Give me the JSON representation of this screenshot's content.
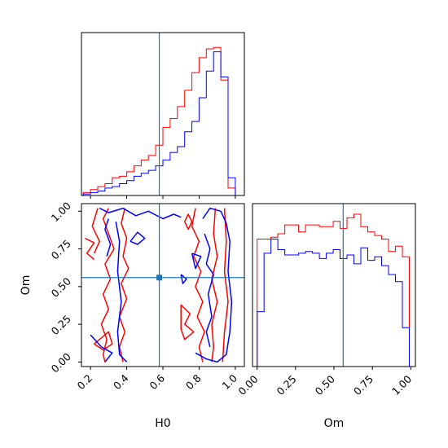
{
  "colors": {
    "series_a": "#ff0000",
    "series_b": "#0000ff",
    "truth": "#1f77b4",
    "axes": "#000000"
  },
  "chart_data": [
    {
      "type": "histogram",
      "panel": "H0 marginal",
      "x": [
        0.16,
        0.2,
        0.24,
        0.28,
        0.32,
        0.36,
        0.4,
        0.44,
        0.48,
        0.52,
        0.56,
        0.6,
        0.64,
        0.68,
        0.72,
        0.76,
        0.8,
        0.84,
        0.88,
        0.92,
        0.96,
        1.0
      ],
      "series": [
        {
          "values": [
            0.02,
            0.04,
            0.06,
            0.08,
            0.12,
            0.13,
            0.16,
            0.2,
            0.24,
            0.27,
            0.34,
            0.46,
            0.52,
            0.6,
            0.71,
            0.83,
            0.93,
            0.99,
            1.0,
            0.78,
            0.05
          ]
        },
        {
          "values": [
            0.01,
            0.02,
            0.03,
            0.05,
            0.06,
            0.08,
            0.1,
            0.13,
            0.15,
            0.17,
            0.2,
            0.24,
            0.29,
            0.33,
            0.43,
            0.5,
            0.66,
            0.84,
            0.97,
            0.8,
            0.12
          ]
        }
      ],
      "truth_x": 0.58,
      "xlim": [
        0.15,
        1.05
      ],
      "ylim": [
        0,
        1.1
      ]
    },
    {
      "type": "contour",
      "panel": "H0 vs Om",
      "xlabel": "H0",
      "ylabel": "Om",
      "xlim": [
        0.15,
        1.05
      ],
      "ylim": [
        -0.03,
        1.05
      ],
      "xticks": [
        "0.2",
        "0.4",
        "0.6",
        "0.8",
        "1.0"
      ],
      "yticks": [
        "0.00",
        "0.25",
        "0.50",
        "0.75",
        "1.00"
      ],
      "truth": [
        0.58,
        0.56
      ],
      "series": [
        {
          "paths": [
            [
              [
                0.3,
                1.02
              ],
              [
                0.27,
                0.95
              ],
              [
                0.3,
                0.85
              ],
              [
                0.33,
                0.75
              ],
              [
                0.28,
                0.65
              ],
              [
                0.31,
                0.55
              ],
              [
                0.27,
                0.45
              ],
              [
                0.3,
                0.35
              ],
              [
                0.26,
                0.25
              ],
              [
                0.29,
                0.15
              ],
              [
                0.27,
                0.05
              ],
              [
                0.28,
                0.0
              ]
            ],
            [
              [
                0.24,
                1.02
              ],
              [
                0.21,
                0.9
              ],
              [
                0.25,
                0.8
              ],
              [
                0.22,
                0.72
              ]
            ],
            [
              [
                0.22,
                0.12
              ],
              [
                0.27,
                0.08
              ],
              [
                0.32,
                0.12
              ],
              [
                0.3,
                0.2
              ],
              [
                0.22,
                0.12
              ]
            ],
            [
              [
                0.39,
                1.02
              ],
              [
                0.37,
                0.92
              ],
              [
                0.4,
                0.82
              ],
              [
                0.38,
                0.7
              ],
              [
                0.41,
                0.62
              ],
              [
                0.37,
                0.52
              ],
              [
                0.4,
                0.42
              ],
              [
                0.36,
                0.3
              ],
              [
                0.39,
                0.2
              ],
              [
                0.36,
                0.1
              ],
              [
                0.38,
                0.0
              ]
            ],
            [
              [
                0.17,
                0.82
              ],
              [
                0.22,
                0.79
              ],
              [
                0.18,
                0.72
              ],
              [
                0.22,
                0.68
              ]
            ],
            [
              [
                0.72,
                0.93
              ],
              [
                0.74,
                0.98
              ],
              [
                0.76,
                0.93
              ],
              [
                0.74,
                0.88
              ],
              [
                0.72,
                0.93
              ]
            ],
            [
              [
                0.78,
                1.02
              ],
              [
                0.76,
                0.9
              ],
              [
                0.8,
                0.8
              ],
              [
                0.77,
                0.7
              ],
              [
                0.81,
                0.6
              ],
              [
                0.78,
                0.5
              ],
              [
                0.82,
                0.4
              ],
              [
                0.79,
                0.3
              ],
              [
                0.83,
                0.2
              ],
              [
                0.8,
                0.1
              ],
              [
                0.82,
                0.0
              ]
            ],
            [
              [
                0.89,
                1.02
              ],
              [
                0.88,
                0.85
              ],
              [
                0.9,
                0.7
              ],
              [
                0.87,
                0.55
              ],
              [
                0.9,
                0.4
              ],
              [
                0.87,
                0.25
              ],
              [
                0.88,
                0.1
              ],
              [
                0.87,
                0.0
              ]
            ],
            [
              [
                0.94,
                1.02
              ],
              [
                0.95,
                0.8
              ],
              [
                0.94,
                0.6
              ],
              [
                0.96,
                0.4
              ],
              [
                0.94,
                0.2
              ],
              [
                0.93,
                0.0
              ]
            ],
            [
              [
                0.7,
                0.38
              ],
              [
                0.75,
                0.32
              ],
              [
                0.72,
                0.25
              ],
              [
                0.77,
                0.2
              ],
              [
                0.72,
                0.15
              ],
              [
                0.7,
                0.22
              ],
              [
                0.7,
                0.38
              ]
            ]
          ]
        },
        {
          "paths": [
            [
              [
                0.25,
                1.02
              ],
              [
                0.3,
                0.99
              ],
              [
                0.38,
                1.02
              ],
              [
                0.45,
                0.97
              ],
              [
                0.52,
                1.0
              ],
              [
                0.6,
                0.95
              ],
              [
                0.66,
                0.98
              ],
              [
                0.7,
                0.96
              ]
            ],
            [
              [
                0.3,
                0.95
              ],
              [
                0.28,
                0.88
              ],
              [
                0.31,
                0.78
              ],
              [
                0.29,
                0.7
              ]
            ],
            [
              [
                0.34,
                0.93
              ],
              [
                0.36,
                0.8
              ],
              [
                0.35,
                0.6
              ],
              [
                0.37,
                0.4
              ],
              [
                0.35,
                0.2
              ],
              [
                0.36,
                0.05
              ],
              [
                0.4,
                0.0
              ]
            ],
            [
              [
                0.42,
                0.8
              ],
              [
                0.46,
                0.86
              ],
              [
                0.5,
                0.82
              ],
              [
                0.46,
                0.78
              ],
              [
                0.42,
                0.8
              ]
            ],
            [
              [
                0.2,
                0.18
              ],
              [
                0.26,
                0.1
              ],
              [
                0.32,
                0.06
              ],
              [
                0.28,
                0.0
              ]
            ],
            [
              [
                0.82,
                0.95
              ],
              [
                0.86,
                1.02
              ],
              [
                0.92,
                1.0
              ],
              [
                0.95,
                0.92
              ],
              [
                0.97,
                0.8
              ],
              [
                0.96,
                0.6
              ],
              [
                0.98,
                0.4
              ],
              [
                0.97,
                0.2
              ],
              [
                0.95,
                0.05
              ],
              [
                0.9,
                0.0
              ],
              [
                0.84,
                0.02
              ],
              [
                0.78,
                0.06
              ]
            ],
            [
              [
                0.83,
                0.85
              ],
              [
                0.86,
                0.75
              ],
              [
                0.84,
                0.65
              ],
              [
                0.88,
                0.58
              ],
              [
                0.85,
                0.45
              ],
              [
                0.87,
                0.3
              ],
              [
                0.84,
                0.2
              ],
              [
                0.86,
                0.1
              ]
            ],
            [
              [
                0.7,
                0.58
              ],
              [
                0.73,
                0.55
              ],
              [
                0.71,
                0.52
              ],
              [
                0.7,
                0.58
              ]
            ],
            [
              [
                0.76,
                0.72
              ],
              [
                0.81,
                0.7
              ],
              [
                0.78,
                0.62
              ],
              [
                0.76,
                0.72
              ]
            ]
          ]
        }
      ]
    },
    {
      "type": "histogram",
      "panel": "Om marginal",
      "xlabel": "Om",
      "xticks": [
        "0.00",
        "0.25",
        "0.50",
        "0.75",
        "1.00"
      ],
      "x": [
        0.0,
        0.045,
        0.09,
        0.135,
        0.18,
        0.225,
        0.27,
        0.315,
        0.36,
        0.405,
        0.45,
        0.495,
        0.54,
        0.585,
        0.63,
        0.675,
        0.72,
        0.765,
        0.81,
        0.855,
        0.9,
        0.945,
        0.99
      ],
      "series": [
        {
          "values": [
            0.72,
            0.72,
            0.73,
            0.75,
            0.8,
            0.8,
            0.76,
            0.8,
            0.8,
            0.79,
            0.79,
            0.82,
            0.78,
            0.84,
            0.86,
            0.79,
            0.76,
            0.74,
            0.72,
            0.65,
            0.68,
            0.62
          ]
        },
        {
          "values": [
            0.31,
            0.64,
            0.72,
            0.66,
            0.63,
            0.63,
            0.64,
            0.65,
            0.64,
            0.61,
            0.64,
            0.66,
            0.61,
            0.63,
            0.58,
            0.67,
            0.6,
            0.62,
            0.57,
            0.52,
            0.48,
            0.22
          ]
        }
      ],
      "truth_x": 0.56,
      "xlim": [
        -0.03,
        1.03
      ],
      "ylim": [
        0,
        0.92
      ]
    }
  ]
}
